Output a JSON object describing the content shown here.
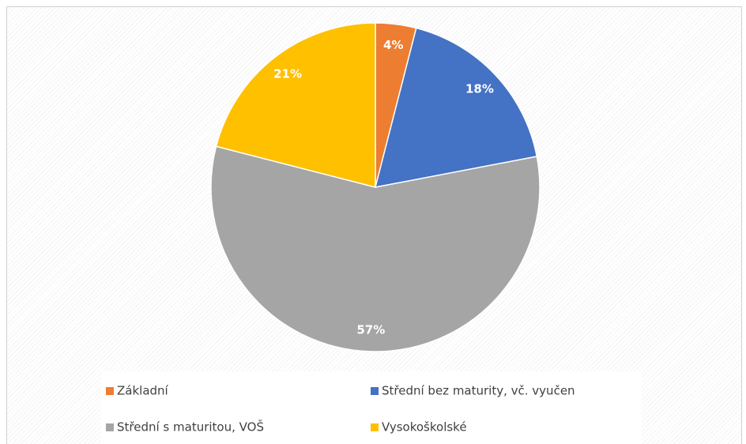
{
  "chart_data": {
    "type": "pie",
    "categories": [
      "Základní",
      "Střední bez maturity, vč. vyučen",
      "Střední s maturitou, VOŠ",
      "Vysokoškolské"
    ],
    "values": [
      4,
      18,
      57,
      21
    ],
    "value_labels": [
      "4%",
      "18%",
      "57%",
      "21%"
    ],
    "colors": [
      "#ed7d31",
      "#4472c4",
      "#a5a5a5",
      "#ffc000"
    ],
    "legend": "bottom"
  }
}
